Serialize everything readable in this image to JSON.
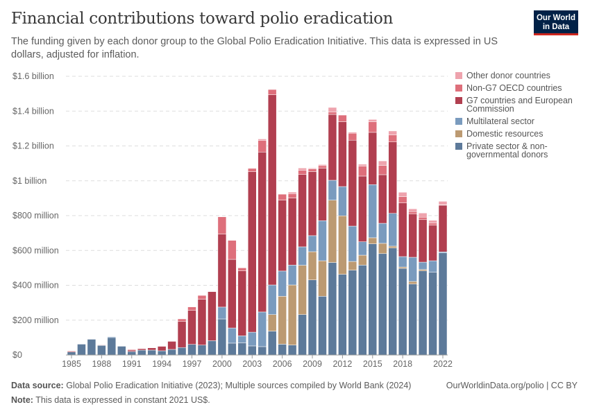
{
  "header": {
    "title": "Financial contributions toward polio eradication",
    "subtitle": "The funding given by each donor group to the Global Polio Eradication Initiative. This data is expressed in US dollars, adjusted for inflation.",
    "logo": "Our World in Data"
  },
  "footer": {
    "source_label": "Data source:",
    "source": "Global Polio Eradication Initiative (2023); Multiple sources compiled by World Bank (2024)",
    "url": "OurWorldinData.org/polio | CC BY",
    "note_label": "Note:",
    "note": "This data is expressed in constant 2021 US$."
  },
  "chart_data": {
    "type": "bar",
    "stacked": true,
    "grid": true,
    "legend": "right",
    "unit": "million US$",
    "ylim": [
      0,
      1600
    ],
    "yticks": [
      0,
      200,
      400,
      600,
      800,
      1000,
      1200,
      1400,
      1600
    ],
    "ytick_labels": [
      "$0",
      "$200 million",
      "$400 million",
      "$600 million",
      "$800 million",
      "$1 billion",
      "$1.2 billion",
      "$1.4 billion",
      "$1.6 billion"
    ],
    "xtick_labels": [
      "1985",
      "1988",
      "1991",
      "1994",
      "1997",
      "2000",
      "2003",
      "2006",
      "2009",
      "2012",
      "2015",
      "2018",
      "2022"
    ],
    "categories": [
      1985,
      1986,
      1987,
      1988,
      1989,
      1990,
      1991,
      1992,
      1993,
      1994,
      1995,
      1996,
      1997,
      1998,
      1999,
      2000,
      2001,
      2002,
      2003,
      2004,
      2005,
      2006,
      2007,
      2008,
      2009,
      2010,
      2011,
      2012,
      2013,
      2014,
      2015,
      2016,
      2017,
      2018,
      2019,
      2020,
      2021,
      2022
    ],
    "series": [
      {
        "name": "Private sector & non-governmental donors",
        "color": "#5d7a9a",
        "values": [
          17,
          62,
          90,
          55,
          100,
          50,
          20,
          28,
          28,
          24,
          32,
          43,
          61,
          57,
          82,
          207,
          68,
          70,
          52,
          48,
          137,
          62,
          57,
          232,
          431,
          337,
          531,
          463,
          487,
          516,
          638,
          582,
          614,
          497,
          407,
          483,
          475,
          586
        ]
      },
      {
        "name": "Domestic resources",
        "color": "#bc9a72",
        "values": [
          0,
          0,
          0,
          0,
          0,
          0,
          0,
          0,
          0,
          0,
          0,
          0,
          0,
          0,
          0,
          0,
          0,
          0,
          0,
          0,
          95,
          275,
          345,
          283,
          162,
          204,
          358,
          336,
          50,
          57,
          35,
          59,
          11,
          8,
          15,
          8,
          0,
          0
        ]
      },
      {
        "name": "Multilateral sector",
        "color": "#7a9bbe",
        "values": [
          0,
          0,
          0,
          0,
          5,
          0,
          0,
          0,
          0,
          0,
          0,
          0,
          0,
          0,
          0,
          68,
          87,
          40,
          79,
          199,
          170,
          145,
          114,
          106,
          92,
          230,
          114,
          168,
          203,
          77,
          305,
          115,
          188,
          60,
          139,
          42,
          66,
          6
        ]
      },
      {
        "name": "G7 countries and European Commission",
        "color": "#b13f50",
        "values": [
          5,
          0,
          0,
          0,
          0,
          0,
          8,
          8,
          13,
          26,
          46,
          149,
          195,
          263,
          282,
          419,
          394,
          373,
          921,
          918,
          1092,
          407,
          385,
          415,
          368,
          301,
          378,
          372,
          493,
          377,
          300,
          279,
          410,
          308,
          248,
          244,
          204,
          268
        ]
      },
      {
        "name": "Non-G7 OECD countries",
        "color": "#de6f7b",
        "values": [
          0,
          0,
          0,
          0,
          0,
          0,
          4,
          0,
          0,
          2,
          0,
          15,
          20,
          22,
          0,
          99,
          109,
          17,
          19,
          66,
          30,
          34,
          25,
          24,
          15,
          15,
          13,
          38,
          40,
          57,
          61,
          53,
          40,
          36,
          14,
          14,
          12,
          2
        ]
      },
      {
        "name": "Other donor countries",
        "color": "#eea3ad",
        "values": [
          0,
          0,
          0,
          3,
          0,
          0,
          0,
          0,
          0,
          0,
          0,
          0,
          0,
          0,
          2,
          0,
          0,
          0,
          0,
          9,
          0,
          0,
          9,
          13,
          5,
          6,
          27,
          0,
          6,
          11,
          13,
          26,
          23,
          25,
          16,
          24,
          16,
          20
        ]
      }
    ]
  }
}
